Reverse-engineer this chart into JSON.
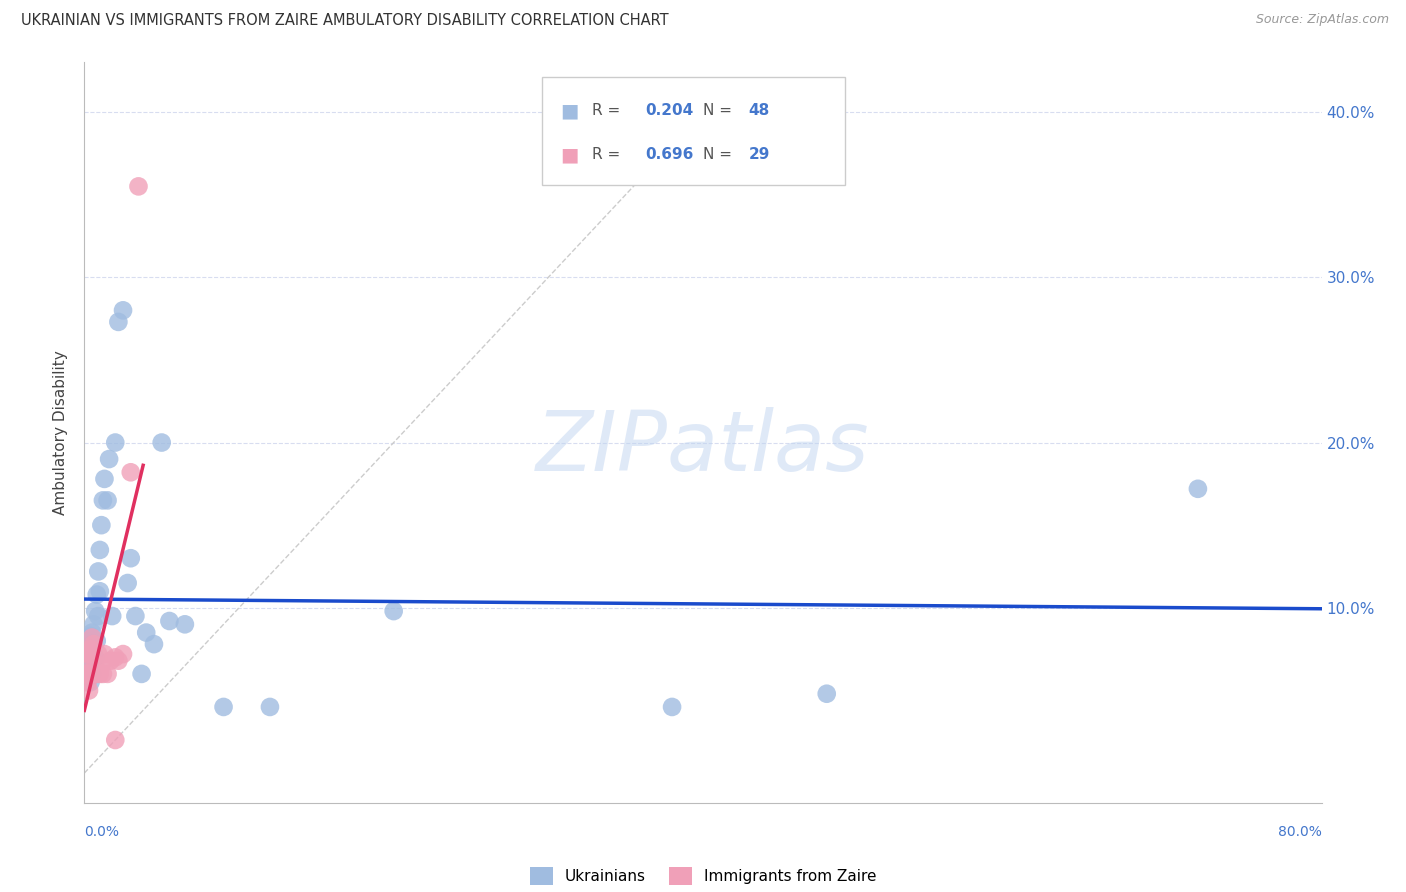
{
  "title": "UKRAINIAN VS IMMIGRANTS FROM ZAIRE AMBULATORY DISABILITY CORRELATION CHART",
  "source": "Source: ZipAtlas.com",
  "ylabel": "Ambulatory Disability",
  "xlim": [
    0.0,
    0.8
  ],
  "ylim": [
    -0.018,
    0.43
  ],
  "yticks": [
    0.0,
    0.1,
    0.2,
    0.3,
    0.4
  ],
  "ytick_labels": [
    "",
    "10.0%",
    "20.0%",
    "30.0%",
    "40.0%"
  ],
  "background_color": "#ffffff",
  "grid_color": "#d8ddf0",
  "ukrainian_color": "#a0bce0",
  "zaire_color": "#f0a0b8",
  "ukrainian_line_color": "#1a4bcc",
  "zaire_line_color": "#e03060",
  "diagonal_color": "#cccccc",
  "watermark": "ZIPatlas",
  "ukrainians_x": [
    0.001,
    0.001,
    0.002,
    0.002,
    0.002,
    0.003,
    0.003,
    0.003,
    0.004,
    0.004,
    0.004,
    0.005,
    0.005,
    0.005,
    0.006,
    0.006,
    0.007,
    0.007,
    0.008,
    0.008,
    0.009,
    0.009,
    0.01,
    0.01,
    0.011,
    0.012,
    0.013,
    0.015,
    0.016,
    0.018,
    0.02,
    0.022,
    0.025,
    0.028,
    0.03,
    0.033,
    0.037,
    0.04,
    0.045,
    0.05,
    0.055,
    0.065,
    0.09,
    0.12,
    0.2,
    0.38,
    0.48,
    0.72
  ],
  "ukrainians_y": [
    0.073,
    0.06,
    0.08,
    0.068,
    0.055,
    0.082,
    0.068,
    0.058,
    0.083,
    0.07,
    0.055,
    0.085,
    0.072,
    0.06,
    0.09,
    0.078,
    0.098,
    0.07,
    0.108,
    0.08,
    0.122,
    0.095,
    0.135,
    0.11,
    0.15,
    0.165,
    0.178,
    0.165,
    0.19,
    0.095,
    0.2,
    0.273,
    0.28,
    0.115,
    0.13,
    0.095,
    0.06,
    0.085,
    0.078,
    0.2,
    0.092,
    0.09,
    0.04,
    0.04,
    0.098,
    0.04,
    0.048,
    0.172
  ],
  "zaire_x": [
    0.001,
    0.001,
    0.002,
    0.002,
    0.002,
    0.003,
    0.003,
    0.003,
    0.004,
    0.004,
    0.005,
    0.005,
    0.006,
    0.006,
    0.007,
    0.008,
    0.009,
    0.01,
    0.011,
    0.012,
    0.013,
    0.015,
    0.017,
    0.02,
    0.02,
    0.022,
    0.025,
    0.03,
    0.035
  ],
  "zaire_y": [
    0.073,
    0.06,
    0.072,
    0.06,
    0.055,
    0.072,
    0.06,
    0.05,
    0.075,
    0.06,
    0.082,
    0.068,
    0.078,
    0.06,
    0.065,
    0.06,
    0.072,
    0.06,
    0.065,
    0.06,
    0.072,
    0.06,
    0.068,
    0.02,
    0.07,
    0.068,
    0.072,
    0.182,
    0.355
  ]
}
